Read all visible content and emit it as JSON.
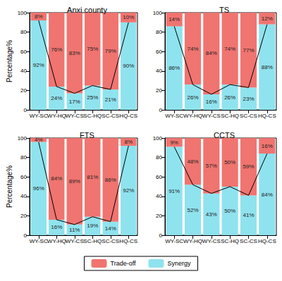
{
  "chart_data": [
    {
      "type": "bar",
      "title": "Anxi county",
      "ylabel": "Percentage%",
      "categories": [
        "WY-SC",
        "WY-HQ",
        "WY-CS",
        "SC-HQ",
        "SC-CS",
        "HQ-CS"
      ],
      "series": [
        {
          "name": "Synergy",
          "color": "#8fe3ee",
          "values": [
            92,
            24,
            17,
            25,
            21,
            90
          ],
          "value_labels": [
            "92%",
            "24%",
            "17%",
            "25%",
            "21%",
            "90%"
          ]
        },
        {
          "name": "Trade-off",
          "color": "#f07470",
          "values": [
            8,
            76,
            83,
            75,
            79,
            10
          ],
          "value_labels": [
            "8%",
            "76%",
            "83%",
            "75%",
            "79%",
            "10%"
          ]
        }
      ],
      "ylim": [
        0,
        100
      ],
      "yticks": [
        0,
        20,
        40,
        60,
        80,
        100
      ],
      "grid": false,
      "stacked": true,
      "data_labels": true,
      "legend": "bottom"
    },
    {
      "type": "bar",
      "title": "TS",
      "categories": [
        "WY-SC",
        "WY-HQ",
        "WY-CS",
        "SC-HQ",
        "SC-CS",
        "HQ-CS"
      ],
      "series": [
        {
          "name": "Synergy",
          "color": "#8fe3ee",
          "values": [
            86,
            26,
            16,
            26,
            23,
            88
          ],
          "value_labels": [
            "86%",
            "26%",
            "16%",
            "26%",
            "23%",
            "88%"
          ]
        },
        {
          "name": "Trade-off",
          "color": "#f07470",
          "values": [
            14,
            74,
            84,
            74,
            77,
            12
          ],
          "value_labels": [
            "14%",
            "74%",
            "84%",
            "74%",
            "77%",
            "12%"
          ]
        }
      ],
      "ylim": [
        0,
        100
      ],
      "yticks": [
        0,
        20,
        40,
        60,
        80,
        100
      ],
      "grid": false,
      "stacked": true,
      "data_labels": true,
      "legend": "bottom"
    },
    {
      "type": "bar",
      "title": "FTS",
      "ylabel": "Percentage%",
      "categories": [
        "WY-SC",
        "WY-HQ",
        "WY-CS",
        "SC-HQ",
        "SC-CS",
        "HQ-CS"
      ],
      "series": [
        {
          "name": "Synergy",
          "color": "#8fe3ee",
          "values": [
            96,
            16,
            11,
            19,
            14,
            92
          ],
          "value_labels": [
            "96%",
            "16%",
            "11%",
            "19%",
            "14%",
            "92%"
          ]
        },
        {
          "name": "Trade-off",
          "color": "#f07470",
          "values": [
            4,
            84,
            89,
            81,
            86,
            8
          ],
          "value_labels": [
            "4%",
            "84%",
            "89%",
            "81%",
            "86%",
            "8%"
          ]
        }
      ],
      "ylim": [
        0,
        100
      ],
      "yticks": [
        0,
        20,
        40,
        60,
        80,
        100
      ],
      "grid": false,
      "stacked": true,
      "data_labels": true,
      "legend": "bottom"
    },
    {
      "type": "bar",
      "title": "CCTS",
      "categories": [
        "WY-SC",
        "WY-HQ",
        "WY-CS",
        "SC-HQ",
        "SC-CS",
        "HQ-CS"
      ],
      "series": [
        {
          "name": "Synergy",
          "color": "#8fe3ee",
          "values": [
            91,
            52,
            43,
            50,
            41,
            84
          ],
          "value_labels": [
            "91%",
            "52%",
            "43%",
            "50%",
            "41%",
            "84%"
          ]
        },
        {
          "name": "Trade-off",
          "color": "#f07470",
          "values": [
            9,
            48,
            57,
            50,
            59,
            16
          ],
          "value_labels": [
            "9%",
            "48%",
            "57%",
            "50%",
            "59%",
            "16%"
          ]
        }
      ],
      "ylim": [
        0,
        100
      ],
      "yticks": [
        0,
        20,
        40,
        60,
        80,
        100
      ],
      "grid": false,
      "stacked": true,
      "data_labels": true,
      "legend": "bottom"
    }
  ]
}
